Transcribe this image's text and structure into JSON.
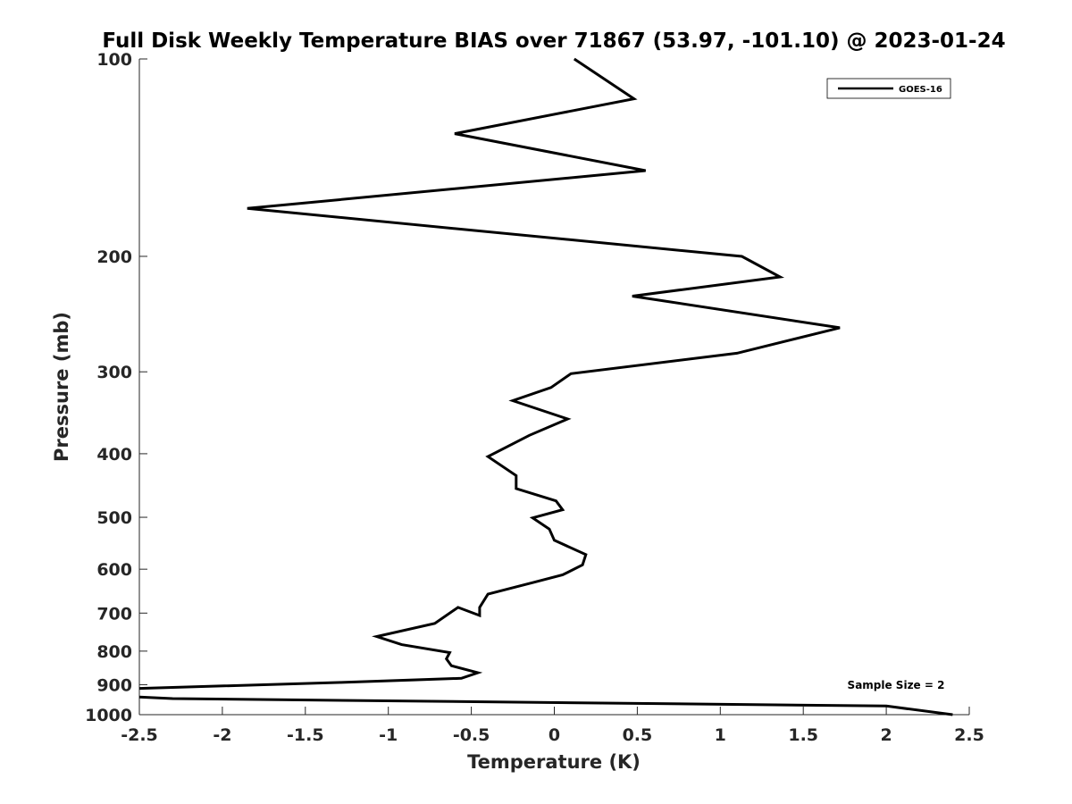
{
  "chart_data": {
    "type": "line",
    "title": "Full Disk Weekly Temperature BIAS over 71867 (53.97, -101.10) @ 2023-01-24",
    "xlabel": "Temperature (K)",
    "ylabel": "Pressure (mb)",
    "xlim": [
      -2.5,
      2.5
    ],
    "ylim": [
      100,
      1000
    ],
    "y_scale": "log",
    "y_reversed": true,
    "x_ticks": [
      "-2.5",
      "-2",
      "-1.5",
      "-1",
      "-0.5",
      "0",
      "0.5",
      "1",
      "1.5",
      "2",
      "2.5"
    ],
    "x_tick_values": [
      -2.5,
      -2,
      -1.5,
      -1,
      -0.5,
      0,
      0.5,
      1,
      1.5,
      2,
      2.5
    ],
    "y_ticks": [
      "100",
      "200",
      "300",
      "400",
      "500",
      "600",
      "700",
      "800",
      "900",
      "1000"
    ],
    "y_tick_values": [
      100,
      200,
      300,
      400,
      500,
      600,
      700,
      800,
      900,
      1000
    ],
    "grid": false,
    "legend_position": "top-right",
    "annotation": "Sample Size = 2",
    "series": [
      {
        "name": "GOES-16",
        "color": "#000000",
        "x": [
          0.12,
          0.48,
          -0.6,
          0.55,
          -1.85,
          1.13,
          1.36,
          0.47,
          1.72,
          1.1,
          0.1,
          -0.02,
          -0.25,
          0.08,
          -0.15,
          -0.4,
          -0.23,
          -0.23,
          0.01,
          0.05,
          -0.13,
          -0.03,
          0.0,
          0.19,
          0.17,
          0.05,
          -0.12,
          -0.4,
          -0.45,
          -0.45,
          -0.58,
          -0.72,
          -1.07,
          -0.92,
          -0.63,
          -0.65,
          -0.62,
          -0.46,
          -0.56,
          -1.28,
          -2.5
        ],
        "y": [
          100,
          115,
          130,
          148,
          169,
          200,
          215,
          230,
          257,
          281,
          302,
          317,
          332,
          354,
          375,
          404,
          432,
          452,
          472,
          487,
          501,
          521,
          542,
          570,
          591,
          612,
          628,
          655,
          686,
          706,
          686,
          726,
          760,
          782,
          804,
          822,
          842,
          863,
          880,
          893,
          912
        ]
      },
      {
        "name": "",
        "color": "#000000",
        "x": [
          -2.5,
          -2.3,
          2.0,
          2.4
        ],
        "y": [
          940,
          945,
          970,
          1000
        ]
      }
    ]
  }
}
